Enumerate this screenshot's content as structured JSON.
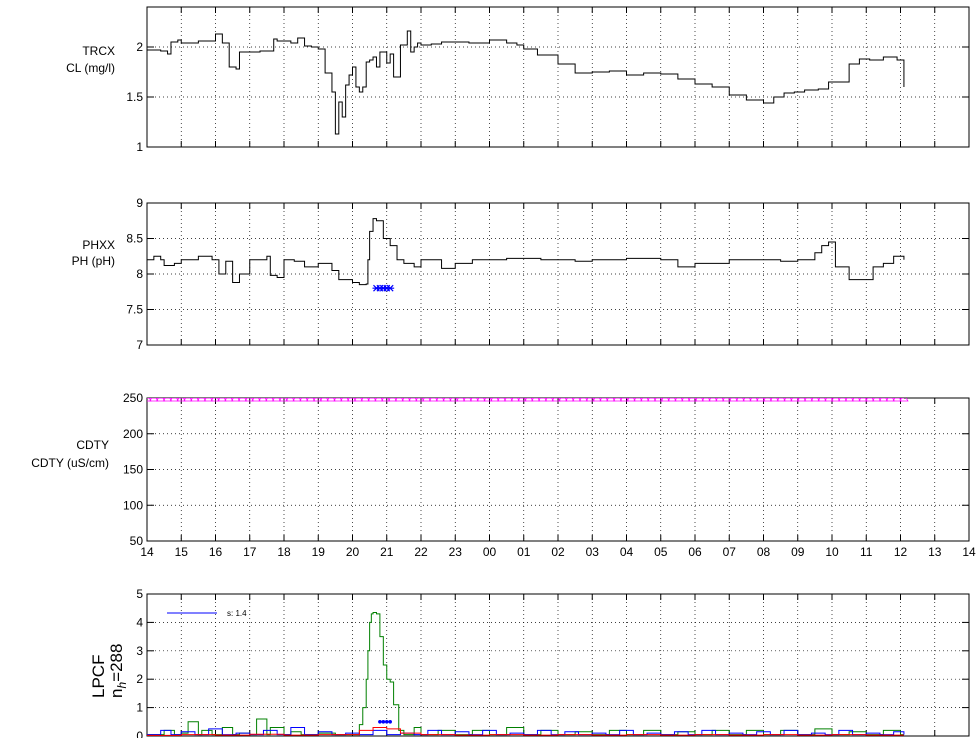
{
  "chart_data": [
    {
      "type": "line",
      "ylabel_line1": "TRCX",
      "ylabel_line2": "CL (mg/l)",
      "ylim": [
        1,
        2.4
      ],
      "yticks": [
        1,
        1.5,
        2
      ],
      "ytick_labels": [
        "1",
        "1.5",
        "2"
      ],
      "xlim": [
        0,
        24
      ],
      "grid": true,
      "series": [
        {
          "color": "#000000",
          "x": [
            0,
            0.4,
            0.6,
            0.7,
            0.9,
            1.0,
            1.5,
            2.0,
            2.2,
            2.4,
            2.6,
            2.7,
            3.3,
            3.7,
            3.8,
            4.2,
            4.4,
            4.6,
            4.8,
            5.0,
            5.2,
            5.4,
            5.5,
            5.6,
            5.7,
            5.8,
            5.9,
            6.0,
            6.1,
            6.2,
            6.3,
            6.4,
            6.5,
            6.6,
            6.7,
            6.8,
            7.0,
            7.1,
            7.2,
            7.4,
            7.6,
            7.7,
            7.8,
            7.9,
            8.0,
            8.3,
            8.6,
            9.0,
            9.4,
            10.0,
            10.5,
            10.8,
            11.0,
            11.4,
            12.0,
            12.5,
            13.0,
            13.5,
            14.0,
            14.5,
            15.0,
            15.5,
            16.0,
            16.5,
            17.0,
            17.5,
            18.0,
            18.3,
            18.6,
            18.9,
            19.2,
            19.6,
            19.9,
            20.5,
            20.8,
            21.1,
            21.5,
            21.9,
            22.1
          ],
          "y": [
            1.97,
            1.96,
            1.93,
            2.05,
            2.07,
            2.04,
            2.06,
            2.13,
            2.04,
            1.8,
            1.78,
            1.95,
            1.96,
            2.08,
            2.06,
            2.04,
            2.09,
            2.01,
            2.0,
            1.98,
            1.74,
            1.55,
            1.13,
            1.45,
            1.3,
            1.62,
            1.72,
            1.8,
            1.6,
            1.55,
            1.6,
            1.85,
            1.87,
            1.9,
            1.8,
            1.95,
            1.84,
            1.93,
            1.7,
            2.02,
            2.16,
            1.95,
            2.0,
            2.04,
            2.02,
            2.03,
            2.05,
            2.05,
            2.04,
            2.07,
            2.04,
            2.02,
            1.98,
            1.92,
            1.83,
            1.74,
            1.75,
            1.76,
            1.72,
            1.74,
            1.73,
            1.68,
            1.63,
            1.6,
            1.52,
            1.47,
            1.44,
            1.5,
            1.54,
            1.55,
            1.57,
            1.58,
            1.65,
            1.83,
            1.88,
            1.87,
            1.9,
            1.87,
            1.6
          ]
        }
      ]
    },
    {
      "type": "line",
      "ylabel_line1": "PHXX",
      "ylabel_line2": "PH (pH)",
      "ylim": [
        7,
        9
      ],
      "yticks": [
        7,
        7.5,
        8,
        8.5,
        9
      ],
      "ytick_labels": [
        "7",
        "7.5",
        "8",
        "8.5",
        "9"
      ],
      "xlim": [
        0,
        24
      ],
      "grid": true,
      "series": [
        {
          "color": "#000000",
          "x": [
            0,
            0.2,
            0.4,
            0.5,
            0.8,
            1.0,
            1.5,
            1.9,
            2.1,
            2.3,
            2.5,
            2.7,
            3.0,
            3.5,
            3.6,
            3.8,
            4.0,
            4.3,
            4.6,
            5.0,
            5.4,
            5.6,
            6.0,
            6.2,
            6.4,
            6.45,
            6.5,
            6.6,
            6.7,
            6.9,
            7.1,
            7.3,
            7.5,
            7.8,
            8.0,
            8.3,
            8.6,
            9.0,
            9.5,
            10.0,
            10.5,
            11.0,
            11.5,
            12.0,
            12.5,
            13.0,
            13.5,
            14.0,
            14.5,
            15.0,
            15.5,
            16.0,
            16.5,
            17.0,
            17.5,
            18.0,
            18.5,
            19.0,
            19.5,
            19.7,
            19.9,
            20.1,
            20.5,
            20.9,
            21.2,
            21.5,
            21.8,
            22.1
          ],
          "y": [
            8.2,
            8.25,
            8.2,
            8.12,
            8.15,
            8.2,
            8.25,
            8.2,
            8.0,
            8.18,
            7.88,
            8.0,
            8.2,
            8.25,
            7.98,
            7.95,
            8.2,
            8.18,
            8.1,
            8.15,
            8.05,
            7.92,
            7.88,
            7.85,
            7.86,
            8.2,
            8.6,
            8.78,
            8.75,
            8.5,
            8.4,
            8.2,
            8.15,
            8.1,
            8.2,
            8.2,
            8.08,
            8.15,
            8.2,
            8.2,
            8.22,
            8.22,
            8.2,
            8.2,
            8.18,
            8.2,
            8.2,
            8.22,
            8.22,
            8.2,
            8.1,
            8.15,
            8.15,
            8.2,
            8.2,
            8.2,
            8.18,
            8.2,
            8.3,
            8.4,
            8.45,
            8.1,
            7.92,
            7.92,
            8.1,
            8.15,
            8.25,
            8.2
          ]
        },
        {
          "color": "#0000ff",
          "marker": "x",
          "x": [
            6.7,
            6.8,
            6.9,
            7.0,
            7.1
          ],
          "y": [
            7.8,
            7.8,
            7.8,
            7.8,
            7.8
          ]
        }
      ]
    },
    {
      "type": "line",
      "ylabel_line1": "CDTY",
      "ylabel_line2": "CDTY (uS/cm)",
      "ylim": [
        50,
        250
      ],
      "yticks": [
        50,
        100,
        150,
        200,
        250
      ],
      "ytick_labels": [
        "50",
        "100",
        "150",
        "200",
        "250"
      ],
      "xlim": [
        0,
        24
      ],
      "grid": true,
      "xtick_labels": [
        "14",
        "15",
        "16",
        "17",
        "18",
        "19",
        "20",
        "21",
        "22",
        "23",
        "00",
        "01",
        "02",
        "03",
        "04",
        "05",
        "06",
        "07",
        "08",
        "09",
        "10",
        "11",
        "12",
        "13",
        "14"
      ],
      "series": [
        {
          "color": "#ff00ff",
          "marker": "triangle",
          "x_start": 0,
          "x_end": 22.1,
          "constant_y": 250,
          "marker_count": 112
        }
      ]
    },
    {
      "type": "line",
      "ylabel_line1": "LPCF",
      "ylabel_line2": "n_h=288",
      "ylabel_n": "n",
      "ylabel_sub": "h",
      "ylabel_eq": "=288",
      "ylim": [
        0,
        5
      ],
      "yticks": [
        0,
        1,
        2,
        3,
        4,
        5
      ],
      "ytick_labels": [
        "0",
        "1",
        "2",
        "3",
        "4",
        "5"
      ],
      "xlim": [
        0,
        24
      ],
      "grid": true,
      "legend": {
        "placement": "top-left",
        "label": "s: 1.4",
        "color": "#0000ff"
      },
      "series": [
        {
          "color": "#008000",
          "x": [
            0,
            0.5,
            0.8,
            1.0,
            1.2,
            1.5,
            1.6,
            1.9,
            2.2,
            2.5,
            2.7,
            3.0,
            3.2,
            3.5,
            3.6,
            4.0,
            4.2,
            4.5,
            5.0,
            5.5,
            6.0,
            6.2,
            6.3,
            6.4,
            6.45,
            6.5,
            6.55,
            6.6,
            6.7,
            6.8,
            6.9,
            7.0,
            7.1,
            7.2,
            7.35,
            7.5,
            7.8,
            8.0,
            8.5,
            9.0,
            9.5,
            10.0,
            10.5,
            11.0,
            11.5,
            12.0,
            12.5,
            13.0,
            13.5,
            14.0,
            14.5,
            15.0,
            15.5,
            16.0,
            16.5,
            17.0,
            17.5,
            18.0,
            18.5,
            19.0,
            19.5,
            20.0,
            20.5,
            21.0,
            21.5,
            22.0,
            22.1
          ],
          "y": [
            0.05,
            0.2,
            0.05,
            0.1,
            0.5,
            0.05,
            0.2,
            0.05,
            0.3,
            0.05,
            0.1,
            0.05,
            0.6,
            0.05,
            0.3,
            0.05,
            0.15,
            0.05,
            0.1,
            0.05,
            0.05,
            0.4,
            1.0,
            2.0,
            3.0,
            4.0,
            4.3,
            4.35,
            4.3,
            3.5,
            2.5,
            2.0,
            1.9,
            1.1,
            0.2,
            0.05,
            0.3,
            0.05,
            0.2,
            0.05,
            0.2,
            0.05,
            0.3,
            0.05,
            0.2,
            0.05,
            0.15,
            0.05,
            0.2,
            0.05,
            0.2,
            0.05,
            0.15,
            0.05,
            0.2,
            0.05,
            0.2,
            0.05,
            0.2,
            0.05,
            0.25,
            0.05,
            0.15,
            0.05,
            0.2,
            0.05,
            0.05
          ]
        },
        {
          "color": "#0000ff",
          "x": [
            0,
            0.4,
            0.7,
            1.0,
            1.4,
            1.8,
            2.2,
            2.6,
            3.0,
            3.4,
            3.8,
            4.2,
            4.6,
            5.0,
            5.4,
            5.8,
            6.2,
            6.6,
            7.0,
            7.4,
            7.8,
            8.2,
            8.6,
            9.0,
            9.4,
            9.8,
            10.2,
            10.6,
            11.0,
            11.4,
            11.8,
            12.2,
            12.6,
            13.0,
            13.4,
            13.8,
            14.2,
            14.6,
            15.0,
            15.4,
            15.8,
            16.2,
            16.6,
            17.0,
            17.4,
            17.8,
            18.2,
            18.6,
            19.0,
            19.4,
            19.8,
            20.2,
            20.6,
            21.0,
            21.4,
            21.8,
            22.1
          ],
          "y": [
            0.05,
            0.2,
            0.05,
            0.15,
            0.05,
            0.25,
            0.05,
            0.1,
            0.05,
            0.2,
            0.05,
            0.3,
            0.05,
            0.15,
            0.05,
            0.1,
            0.05,
            0.2,
            0.05,
            0.1,
            0.05,
            0.2,
            0.05,
            0.15,
            0.05,
            0.2,
            0.05,
            0.1,
            0.05,
            0.2,
            0.05,
            0.15,
            0.05,
            0.1,
            0.05,
            0.2,
            0.05,
            0.1,
            0.05,
            0.15,
            0.05,
            0.2,
            0.05,
            0.1,
            0.05,
            0.15,
            0.05,
            0.2,
            0.05,
            0.1,
            0.05,
            0.2,
            0.05,
            0.1,
            0.05,
            0.15,
            0.05
          ]
        },
        {
          "color": "#ff0000",
          "x": [
            0,
            1.0,
            2.0,
            3.0,
            4.0,
            5.0,
            5.8,
            6.2,
            6.6,
            7.0,
            7.4,
            8.0,
            9.0,
            10.0,
            11.0,
            12.0,
            13.0,
            14.0,
            15.0,
            16.0,
            17.0,
            18.0,
            19.0,
            20.0,
            21.0,
            22.1
          ],
          "y": [
            0.02,
            0.05,
            0.03,
            0.06,
            0.03,
            0.05,
            0.05,
            0.2,
            0.3,
            0.25,
            0.1,
            0.05,
            0.03,
            0.05,
            0.03,
            0.05,
            0.03,
            0.05,
            0.03,
            0.05,
            0.03,
            0.05,
            0.03,
            0.05,
            0.03,
            0.03
          ]
        },
        {
          "color": "#0000ff",
          "marker": "dot",
          "x": [
            6.8,
            6.9,
            7.0,
            7.1
          ],
          "y": [
            0.5,
            0.5,
            0.5,
            0.5
          ]
        }
      ]
    }
  ]
}
